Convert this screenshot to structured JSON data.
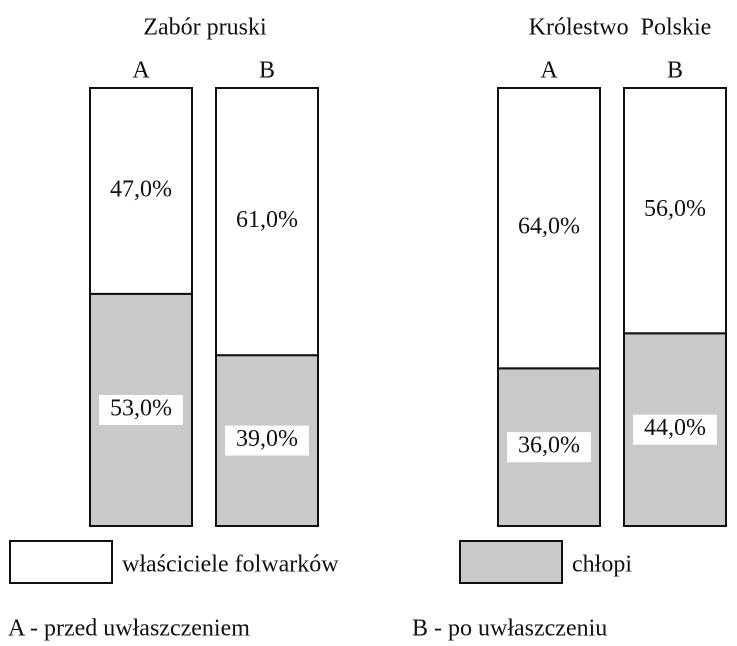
{
  "chart_data": {
    "type": "stacked_bar",
    "groups": [
      {
        "title": "Zabór pruski",
        "categories": [
          "A",
          "B"
        ]
      },
      {
        "title": "Królestwo  Polskie",
        "categories": [
          "A",
          "B"
        ]
      }
    ],
    "series": [
      {
        "name": "właściciele folwarków",
        "color": "#ffffff",
        "values": [
          47,
          61,
          64,
          56
        ],
        "value_labels": [
          "47,0%",
          "61,0%",
          "64,0%",
          "56,0%"
        ]
      },
      {
        "name": "chłopi",
        "color": "#c9c9c9",
        "values": [
          53,
          39,
          36,
          44
        ],
        "value_labels": [
          "53,0%",
          "39,0%",
          "36,0%",
          "44,0%"
        ]
      }
    ],
    "ylim": [
      0,
      100
    ],
    "notes": [
      "A - przed uwłaszczeniem",
      "B - po uwłaszczeniu"
    ]
  }
}
